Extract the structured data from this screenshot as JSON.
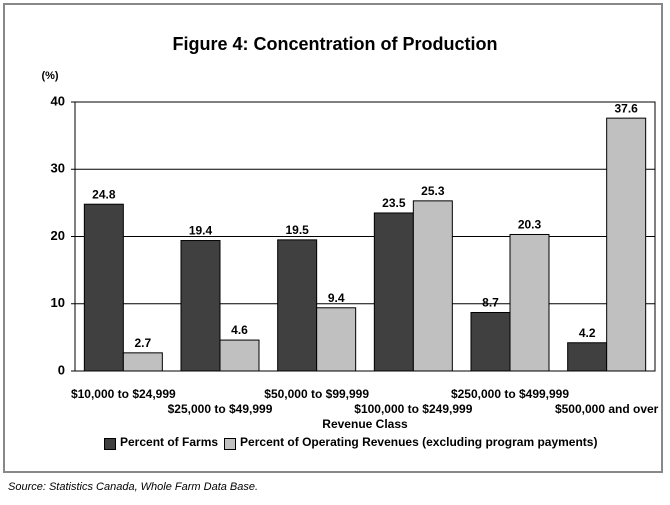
{
  "chart_data": {
    "type": "bar",
    "title": "Figure 4: Concentration of Production",
    "y_unit": "(%)",
    "x_label": "Revenue Class",
    "source": "Source: Statistics Canada, Whole Farm Data Base.",
    "categories": [
      "$10,000 to $24,999",
      "$25,000 to $49,999",
      "$50,000 to $99,999",
      "$100,000 to $249,999",
      "$250,000 to $499,999",
      "$500,000 and over"
    ],
    "series": [
      {
        "name": "Percent of Farms",
        "color": "#404040",
        "values": [
          24.8,
          19.4,
          19.5,
          23.5,
          8.7,
          4.2
        ]
      },
      {
        "name": "Percent of Operating Revenues (excluding program payments)",
        "color": "#c0c0c0",
        "values": [
          2.7,
          4.6,
          9.4,
          25.3,
          20.3,
          37.6
        ]
      }
    ],
    "ylim": [
      0,
      40
    ],
    "yticks": [
      0,
      10,
      20,
      30,
      40
    ],
    "grid": true,
    "legend": "bottom"
  }
}
